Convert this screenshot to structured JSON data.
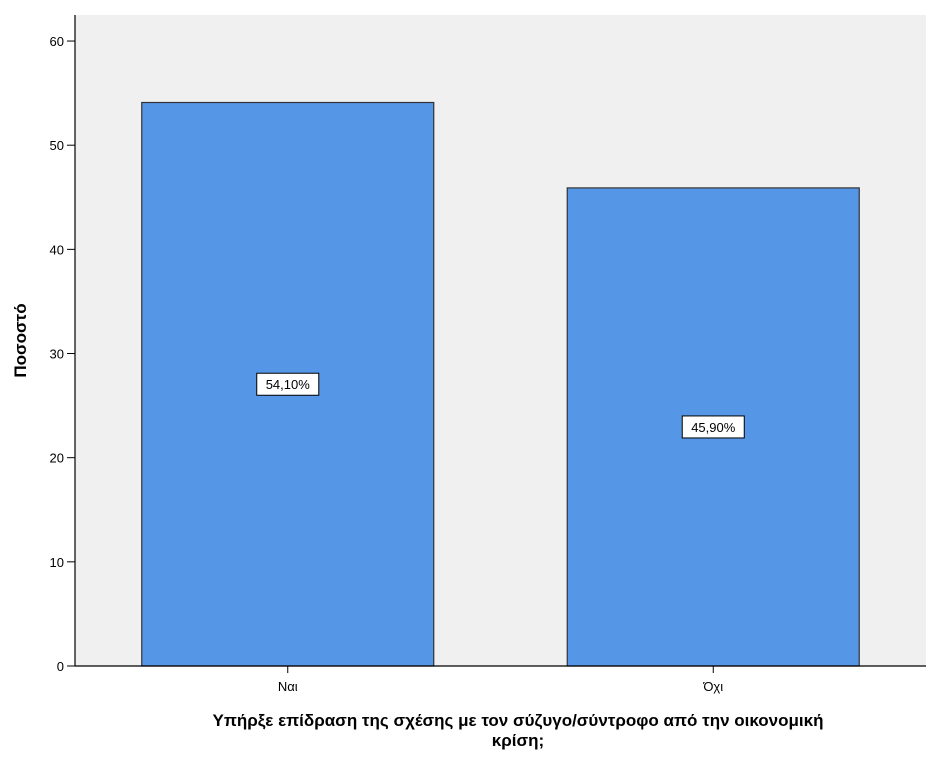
{
  "chart_data": {
    "type": "bar",
    "title": "",
    "categories": [
      "Ναι",
      "Όχι"
    ],
    "values": [
      54.1,
      45.9
    ],
    "data_labels": [
      "54,10%",
      "45,90%"
    ],
    "xlabel_lines": [
      "Υπήρξε επίδραση της σχέσης με τον σύζυγο/σύντροφο από την οικονομική",
      "κρίση;"
    ],
    "ylabel": "Ποσοστό",
    "ylim": [
      0,
      62.5
    ],
    "yticks": [
      0,
      10,
      20,
      30,
      40,
      50,
      60
    ],
    "grid": false,
    "legend": "none",
    "colors": {
      "bar_fill": "#5596e6",
      "bar_stroke": "#333333",
      "plot_background": "#f0f0f0",
      "axis": "#000000"
    }
  }
}
